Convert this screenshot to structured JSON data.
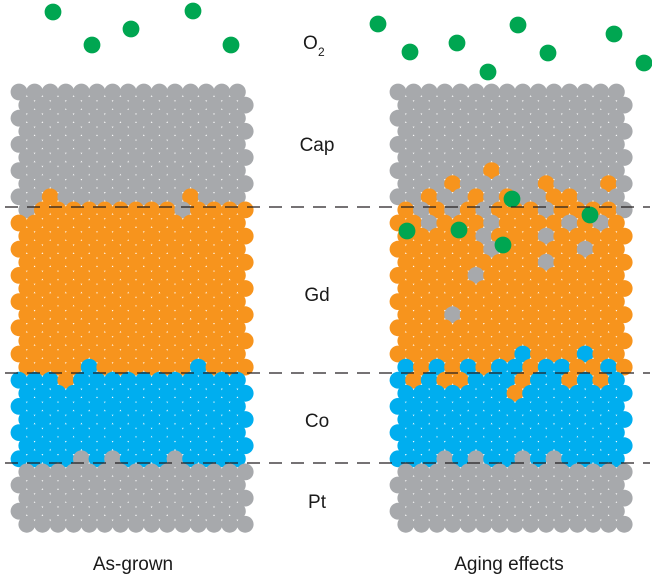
{
  "labels": {
    "oxygen": "O",
    "oxygen_subscript": "2",
    "cap": "Cap",
    "gd": "Gd",
    "co": "Co",
    "pt": "Pt",
    "left_panel": "As-grown",
    "right_panel": "Aging effects"
  },
  "colors": {
    "pt_cap": "#a7a9ac",
    "gd": "#f7941d",
    "co": "#00aeef",
    "oxygen": "#00a651",
    "boundary": "#231f20"
  },
  "panels": [
    {
      "key": "as-grown",
      "state": "as-grown"
    },
    {
      "key": "aging-effects",
      "state": "aged"
    }
  ]
}
